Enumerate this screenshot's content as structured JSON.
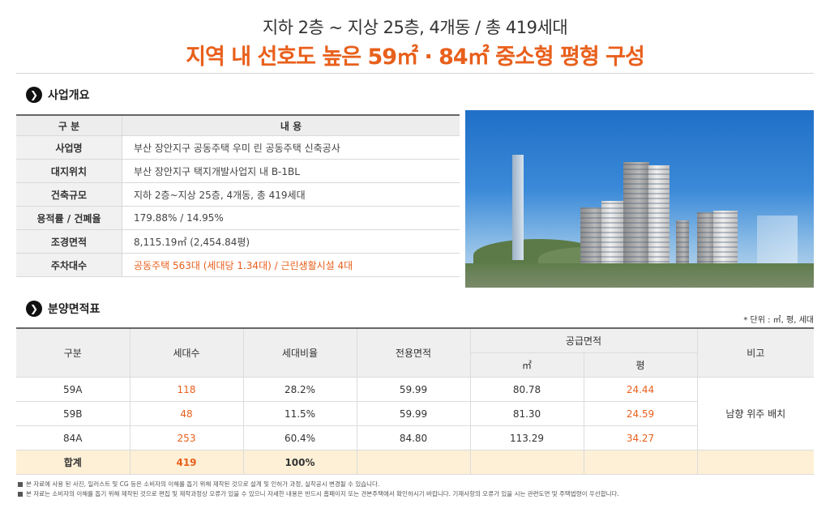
{
  "header": {
    "subtitle": "지하 2층 ~ 지상 25층, 4개동 / 총 419세대",
    "title": "지역 내 선호도 높은 59㎡ · 84㎡ 중소형 평형 구성"
  },
  "overview": {
    "section_icon": "chevron-right-icon",
    "section_title": "사업개요",
    "col_key": "구 분",
    "col_value": "내 용",
    "rows": [
      {
        "key": "사업명",
        "value": "부산 장안지구 공동주택 우미 린 공동주택 신축공사"
      },
      {
        "key": "대지위치",
        "value": "부산 장안지구 택지개발사업지 내 B-1BL"
      },
      {
        "key": "건축규모",
        "value": "지하 2층~지상 25층, 4개동, 총 419세대"
      },
      {
        "key": "용적률 / 건폐율",
        "value": "179.88% / 14.95%"
      },
      {
        "key": "조경면적",
        "value": "8,115.19㎡ (2,454.84평)"
      },
      {
        "key": "주차대수",
        "value": "공동주택 563대 (세대당 1.34대) / 근린생활시설 4대"
      }
    ]
  },
  "areas": {
    "section_icon": "chevron-right-icon",
    "section_title": "분양면적표",
    "unit_note": "* 단위 : ㎡, 평, 세대",
    "headers": {
      "type": "구분",
      "households": "세대수",
      "ratio": "세대비율",
      "exclusive": "전용면적",
      "supply": "공급면적",
      "supply_m2": "㎡",
      "supply_py": "평",
      "note": "비고"
    },
    "rows": [
      {
        "type": "59A",
        "households": "118",
        "ratio": "28.2%",
        "exclusive": "59.99",
        "supply_m2": "80.78",
        "supply_py": "24.44"
      },
      {
        "type": "59B",
        "households": "48",
        "ratio": "11.5%",
        "exclusive": "59.99",
        "supply_m2": "81.30",
        "supply_py": "24.59"
      },
      {
        "type": "84A",
        "households": "253",
        "ratio": "60.4%",
        "exclusive": "84.80",
        "supply_m2": "113.29",
        "supply_py": "34.27"
      }
    ],
    "note_text": "남향 위주 배치",
    "total": {
      "type": "합계",
      "households": "419",
      "ratio": "100%"
    }
  },
  "footnotes": [
    "본 자료에 사용 된 사진, 일러스트 및 CG 등은 소비자의 이해를 돕기 위해 제작된 것으로 설계 및 인허가 과정, 실착공시 변경될 수 있습니다.",
    "본 자료는 소비자의 이해를 돕기 위해 제작된 것으로 편집 및 제작과정상 오류가 있을 수 있으니 자세한 내용은 반드시 홈페이지 또는 견본주택에서 확인하시기 바랍니다. 기재사항의 오류가 있을 시는 관련도면 및 주택법령이 우선합니다."
  ],
  "colors": {
    "accent": "#e8601c",
    "total_row": "#fdf0d6"
  }
}
